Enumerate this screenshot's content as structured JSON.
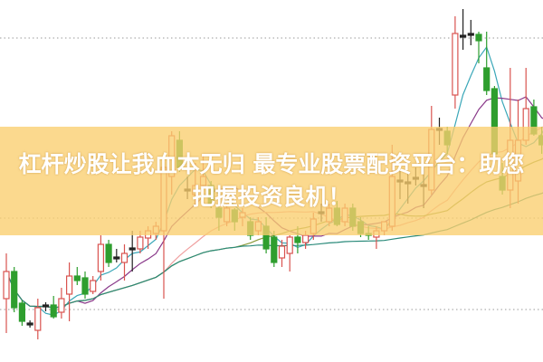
{
  "chart_data": {
    "type": "candlestick",
    "title": "",
    "xlabel": "",
    "ylabel": "",
    "ylim": [
      0,
      40
    ],
    "grid": "horizontal dotted",
    "grid_levels": [
      35.8,
      15.9,
      5.8
    ],
    "colors": {
      "up": "#d9534f",
      "down": "#2e9e2e",
      "doji": "#222222",
      "grid": "#999999"
    },
    "ma_colors": [
      "#3aa7b8",
      "#8a3a8a",
      "#f0a0a0",
      "#8a9a3a",
      "#2a8a7a"
    ],
    "candles": [
      [
        7.0,
        12.0,
        3.2,
        10.0
      ],
      [
        10.0,
        10.5,
        5.5,
        6.0
      ],
      [
        6.5,
        6.8,
        4.0,
        4.5
      ],
      [
        4.2,
        4.6,
        3.8,
        4.2
      ],
      [
        3.5,
        7.0,
        2.5,
        6.0
      ],
      [
        6.2,
        6.6,
        5.6,
        6.2
      ],
      [
        6.3,
        7.3,
        4.8,
        5.0
      ],
      [
        5.5,
        8.2,
        4.8,
        7.0
      ],
      [
        7.5,
        11.0,
        4.5,
        9.5
      ],
      [
        9.5,
        10.5,
        8.5,
        9.0
      ],
      [
        9.3,
        10.0,
        7.0,
        7.5
      ],
      [
        7.8,
        9.5,
        7.5,
        9.0
      ],
      [
        10.0,
        14.0,
        9.0,
        13.0
      ],
      [
        13.0,
        13.5,
        10.5,
        11.0
      ],
      [
        11.5,
        12.5,
        11.0,
        11.5
      ],
      [
        11.0,
        13.0,
        9.0,
        12.0
      ],
      [
        12.5,
        14.5,
        10.0,
        12.5
      ],
      [
        12.5,
        14.5,
        12.0,
        13.8
      ],
      [
        13.7,
        15.0,
        12.5,
        14.5
      ],
      [
        14.2,
        15.5,
        13.5,
        15.0
      ],
      [
        14.5,
        22.0,
        7.0,
        21.5
      ],
      [
        20.5,
        25.5,
        18.5,
        25.0
      ],
      [
        24.5,
        25.5,
        21.0,
        21.5
      ],
      [
        19.0,
        20.5,
        18.0,
        19.0
      ],
      [
        18.5,
        22.0,
        17.5,
        19.5
      ],
      [
        19.5,
        23.0,
        19.0,
        20.5
      ],
      [
        19.5,
        20.0,
        17.0,
        17.5
      ],
      [
        17.0,
        17.5,
        14.5,
        16.0
      ],
      [
        15.5,
        17.5,
        15.0,
        17.0
      ],
      [
        16.8,
        17.0,
        14.5,
        15.5
      ],
      [
        16.0,
        17.0,
        15.0,
        16.5
      ],
      [
        15.5,
        16.0,
        13.5,
        14.0
      ],
      [
        14.5,
        16.0,
        14.0,
        15.5
      ],
      [
        15.0,
        16.0,
        12.0,
        12.5
      ],
      [
        13.8,
        14.5,
        10.5,
        11.0
      ],
      [
        11.5,
        13.5,
        10.5,
        12.8
      ],
      [
        12.0,
        14.0,
        10.0,
        13.8
      ],
      [
        13.8,
        15.0,
        12.0,
        13.2
      ],
      [
        13.2,
        14.5,
        12.5,
        14.0
      ],
      [
        14.2,
        16.5,
        13.5,
        15.8
      ],
      [
        16.5,
        17.5,
        15.5,
        16.5
      ],
      [
        15.5,
        17.5,
        15.0,
        17.0
      ],
      [
        17.0,
        17.8,
        15.0,
        15.2
      ],
      [
        15.5,
        17.5,
        15.0,
        17.0
      ],
      [
        17.0,
        17.5,
        14.5,
        15.0
      ],
      [
        15.5,
        16.0,
        13.8,
        14.2
      ],
      [
        14.2,
        15.0,
        13.5,
        14.0
      ],
      [
        13.8,
        15.0,
        12.5,
        14.5
      ],
      [
        14.5,
        15.5,
        14.0,
        15.5
      ],
      [
        15.0,
        24.0,
        14.5,
        20.5
      ],
      [
        20.0,
        22.0,
        18.0,
        20.0
      ],
      [
        19.8,
        21.0,
        17.5,
        19.8
      ],
      [
        20.3,
        21.5,
        19.5,
        20.3
      ],
      [
        19.5,
        21.5,
        17.0,
        19.5
      ],
      [
        19.0,
        28.3,
        18.5,
        25.7
      ],
      [
        25.7,
        27.0,
        24.0,
        25.7
      ],
      [
        25.5,
        26.0,
        23.0,
        24.0
      ],
      [
        29.5,
        38.2,
        28.0,
        36.3
      ],
      [
        36.0,
        39.0,
        34.5,
        36.0
      ],
      [
        36.2,
        37.8,
        35.0,
        36.2
      ],
      [
        36.2,
        36.5,
        33.0,
        35.5
      ],
      [
        32.5,
        36.5,
        29.5,
        30.0
      ],
      [
        30.2,
        30.5,
        22.0,
        23.0
      ],
      [
        20.5,
        22.0,
        18.5,
        19.0
      ],
      [
        19.0,
        32.5,
        17.0,
        24.5
      ],
      [
        20.0,
        29.0,
        17.5,
        24.5
      ],
      [
        24.5,
        32.5,
        24.0,
        28.0
      ],
      [
        28.2,
        29.0,
        25.0,
        25.2
      ],
      [
        25.0,
        26.0,
        23.0,
        24.0
      ],
      [
        20.0,
        32.0,
        18.0,
        32.0
      ]
    ]
  },
  "banner": {
    "line1": "杠杆炒股让我血本无归 最专业股票配资平台：助您",
    "line2": "把握投资良机！"
  }
}
